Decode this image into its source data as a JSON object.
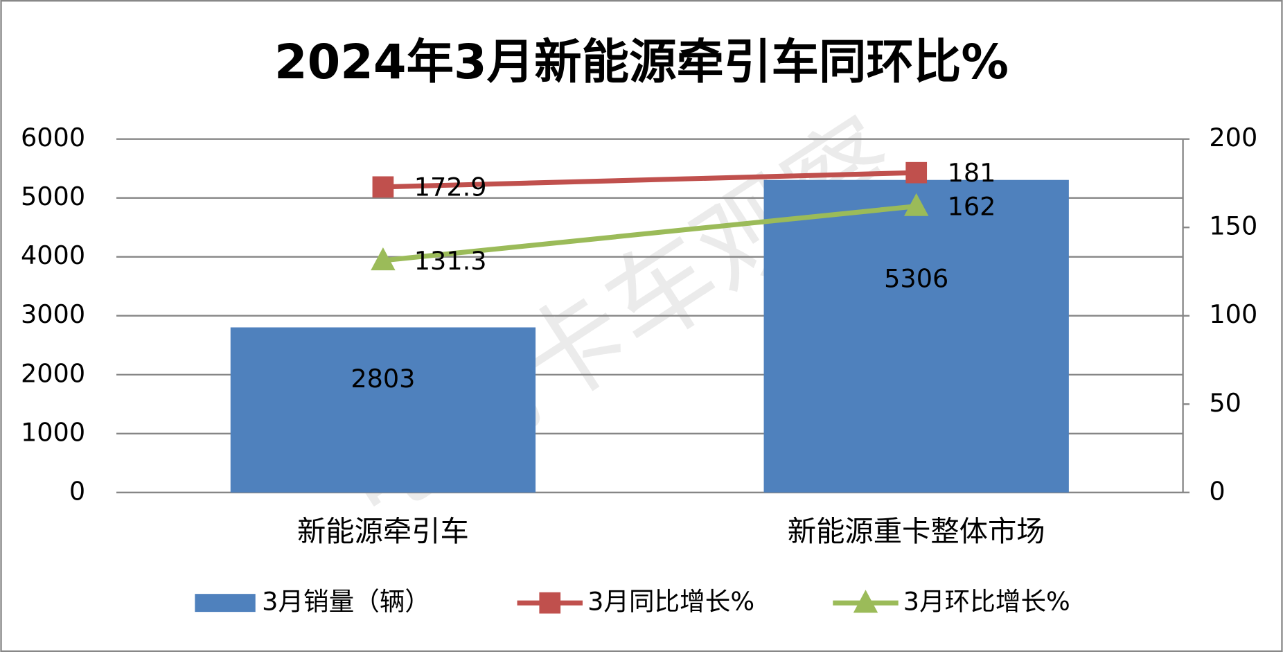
{
  "chart_data": {
    "type": "bar-line",
    "title": "2024年3月新能源牵引车同环比%",
    "watermark": "电动卡车观察",
    "categories": [
      "新能源牵引车",
      "新能源重卡整体市场"
    ],
    "series": [
      {
        "name": "3月销量（辆）",
        "type": "bar",
        "color": "#4f81bd",
        "values": [
          2803,
          5306
        ]
      },
      {
        "name": "3月同比增长%",
        "type": "line",
        "axis": "y2",
        "marker": "square",
        "color": "#c0504d",
        "values": [
          172.9,
          181
        ]
      },
      {
        "name": "3月环比增长%",
        "type": "line",
        "axis": "y2",
        "marker": "triangle",
        "color": "#9bbb59",
        "values": [
          131.3,
          162
        ]
      }
    ],
    "ylim": [
      0,
      6000
    ],
    "yticks": [
      0,
      1000,
      2000,
      3000,
      4000,
      5000,
      6000
    ],
    "y2lim": [
      0,
      200
    ],
    "y2ticks": [
      0,
      50,
      100,
      150,
      200
    ],
    "grid": true,
    "legend": "bottom"
  }
}
